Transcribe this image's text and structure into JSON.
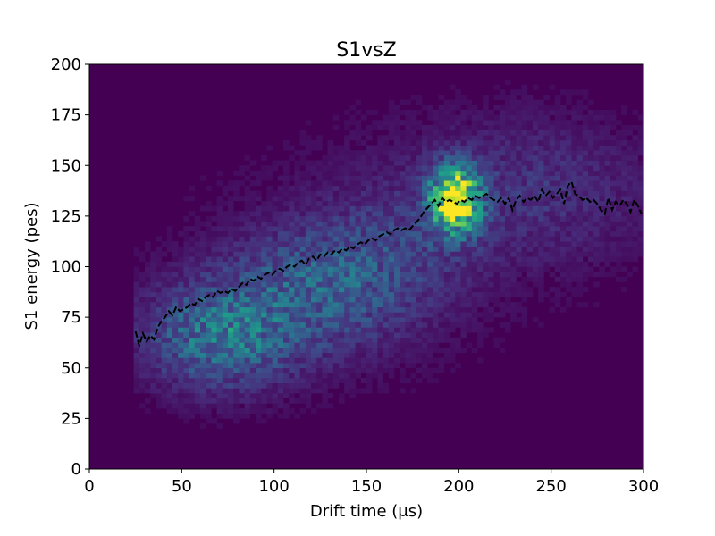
{
  "chart_data": {
    "type": "heatmap",
    "title": "S1vsZ",
    "xlabel": "Drift time (μs)",
    "ylabel": "S1 energy (pes)",
    "xlim": [
      0,
      300
    ],
    "ylim": [
      0,
      200
    ],
    "xticks": [
      0,
      50,
      100,
      150,
      200,
      250,
      300
    ],
    "yticks": [
      0,
      25,
      50,
      75,
      100,
      125,
      150,
      175,
      200
    ],
    "grid": false,
    "colormap": "viridis",
    "background_color": "#440154",
    "profile_color": "#000000",
    "profile": {
      "style": "dashed",
      "x": [
        25,
        27,
        29,
        31,
        33,
        35,
        37,
        39,
        41,
        43,
        45,
        47,
        49,
        51,
        53,
        55,
        57,
        59,
        61,
        63,
        65,
        67,
        69,
        71,
        73,
        75,
        77,
        79,
        81,
        83,
        85,
        87,
        89,
        91,
        93,
        95,
        97,
        99,
        101,
        103,
        105,
        107,
        109,
        111,
        113,
        115,
        117,
        119,
        121,
        123,
        125,
        127,
        129,
        131,
        133,
        135,
        137,
        139,
        141,
        143,
        145,
        147,
        149,
        151,
        153,
        155,
        157,
        159,
        161,
        163,
        165,
        167,
        169,
        171,
        173,
        175,
        177,
        179,
        181,
        183,
        185,
        187,
        189,
        191,
        193,
        195,
        197,
        199,
        201,
        203,
        205,
        207,
        209,
        211,
        213,
        215,
        217,
        219,
        221,
        223,
        225,
        227,
        229,
        231,
        233,
        235,
        237,
        239,
        241,
        243,
        245,
        247,
        249,
        251,
        253,
        255,
        257,
        259,
        261,
        263,
        265,
        267,
        269,
        271,
        273,
        275,
        277,
        279,
        281,
        283,
        285,
        287,
        289,
        291,
        293,
        295,
        297,
        299
      ],
      "y": [
        68,
        61,
        67,
        63,
        66,
        64,
        70,
        73,
        75,
        78,
        76,
        80,
        78,
        79,
        80,
        82,
        81,
        84,
        83,
        85,
        86,
        85,
        88,
        87,
        88,
        87,
        89,
        88,
        90,
        92,
        91,
        94,
        93,
        95,
        94,
        96,
        97,
        96,
        98,
        99,
        98,
        100,
        101,
        100,
        102,
        103,
        101,
        104,
        105,
        103,
        106,
        105,
        107,
        106,
        108,
        107,
        109,
        108,
        110,
        109,
        111,
        112,
        111,
        113,
        114,
        113,
        115,
        116,
        117,
        116,
        118,
        119,
        118,
        119,
        118,
        120,
        122,
        124,
        127,
        129,
        131,
        133,
        130,
        134,
        132,
        133,
        132,
        131,
        133,
        132,
        134,
        133,
        135,
        134,
        135,
        136,
        134,
        133,
        132,
        134,
        131,
        134,
        128,
        133,
        135,
        132,
        134,
        133,
        135,
        132,
        138,
        135,
        137,
        134,
        136,
        138,
        131,
        140,
        142,
        136,
        135,
        133,
        134,
        132,
        133,
        131,
        128,
        126,
        134,
        128,
        132,
        130,
        133,
        131,
        127,
        133,
        130,
        126
      ]
    }
  }
}
